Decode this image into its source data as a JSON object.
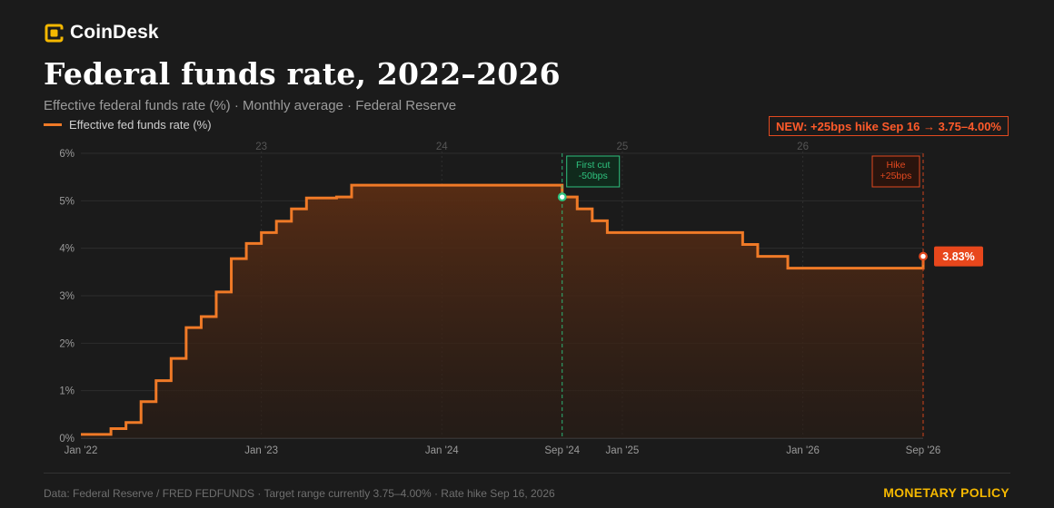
{
  "brand": {
    "name": "CoinDesk",
    "accent": "#f5b800"
  },
  "title": "Federal funds rate, 2022–2026",
  "subtitle": "Effective federal funds rate (%) · Monthly average · Federal Reserve",
  "legend": {
    "label": "Effective fed funds rate (%)",
    "color": "#f07a27"
  },
  "callout": "NEW: +25bps hike Sep 16 → 3.75–4.00%",
  "footer": {
    "source": "Data: Federal Reserve / FRED FEDFUNDS · Target range currently 3.75–4.00% · Rate hike Sep 16, 2026",
    "tag": "MONETARY POLICY"
  },
  "chart_data": {
    "type": "line",
    "step": true,
    "area_fill": true,
    "x_unit": "months",
    "x_start": "2022-01",
    "x_end": "2026-09",
    "xlim": [
      "2022-01",
      "2026-09"
    ],
    "ylim": [
      0,
      6
    ],
    "grid": true,
    "y_ticks": [
      {
        "value": 0,
        "label": "0%"
      },
      {
        "value": 1,
        "label": "1%"
      },
      {
        "value": 2,
        "label": "2%"
      },
      {
        "value": 3,
        "label": "3%"
      },
      {
        "value": 4,
        "label": "4%"
      },
      {
        "value": 5,
        "label": "5%"
      },
      {
        "value": 6,
        "label": "6%"
      }
    ],
    "x_ticks": [
      {
        "date": "2022-01",
        "label": "Jan '22"
      },
      {
        "date": "2023-01",
        "label": "Jan '23"
      },
      {
        "date": "2024-01",
        "label": "Jan '24"
      },
      {
        "date": "2024-09",
        "label": "Sep '24"
      },
      {
        "date": "2025-01",
        "label": "Jan '25"
      },
      {
        "date": "2026-01",
        "label": "Jan '26"
      },
      {
        "date": "2026-09",
        "label": "Sep '26"
      }
    ],
    "year_labels": [
      {
        "date": "2023-01",
        "label": "23"
      },
      {
        "date": "2024-01",
        "label": "24"
      },
      {
        "date": "2025-01",
        "label": "25"
      },
      {
        "date": "2026-01",
        "label": "26"
      }
    ],
    "series": [
      {
        "name": "Effective fed funds rate (%)",
        "color": "#f07a27",
        "points": [
          [
            "2022-01",
            0.08
          ],
          [
            "2022-02",
            0.08
          ],
          [
            "2022-03",
            0.2
          ],
          [
            "2022-04",
            0.33
          ],
          [
            "2022-05",
            0.77
          ],
          [
            "2022-06",
            1.21
          ],
          [
            "2022-07",
            1.68
          ],
          [
            "2022-08",
            2.33
          ],
          [
            "2022-09",
            2.56
          ],
          [
            "2022-10",
            3.08
          ],
          [
            "2022-11",
            3.78
          ],
          [
            "2022-12",
            4.1
          ],
          [
            "2023-01",
            4.33
          ],
          [
            "2023-02",
            4.57
          ],
          [
            "2023-03",
            4.83
          ],
          [
            "2023-04",
            5.06
          ],
          [
            "2023-05",
            5.06
          ],
          [
            "2023-06",
            5.08
          ],
          [
            "2023-07",
            5.33
          ],
          [
            "2023-08",
            5.33
          ],
          [
            "2023-09",
            5.33
          ],
          [
            "2023-10",
            5.33
          ],
          [
            "2023-11",
            5.33
          ],
          [
            "2023-12",
            5.33
          ],
          [
            "2024-01",
            5.33
          ],
          [
            "2024-02",
            5.33
          ],
          [
            "2024-03",
            5.33
          ],
          [
            "2024-04",
            5.33
          ],
          [
            "2024-05",
            5.33
          ],
          [
            "2024-06",
            5.33
          ],
          [
            "2024-07",
            5.33
          ],
          [
            "2024-08",
            5.33
          ],
          [
            "2024-09",
            5.08
          ],
          [
            "2024-10",
            4.83
          ],
          [
            "2024-11",
            4.58
          ],
          [
            "2024-12",
            4.33
          ],
          [
            "2025-01",
            4.33
          ],
          [
            "2025-02",
            4.33
          ],
          [
            "2025-03",
            4.33
          ],
          [
            "2025-04",
            4.33
          ],
          [
            "2025-05",
            4.33
          ],
          [
            "2025-06",
            4.33
          ],
          [
            "2025-07",
            4.33
          ],
          [
            "2025-08",
            4.33
          ],
          [
            "2025-09",
            4.08
          ],
          [
            "2025-10",
            3.83
          ],
          [
            "2025-11",
            3.83
          ],
          [
            "2025-12",
            3.58
          ],
          [
            "2026-01",
            3.58
          ],
          [
            "2026-02",
            3.58
          ],
          [
            "2026-03",
            3.58
          ],
          [
            "2026-04",
            3.58
          ],
          [
            "2026-05",
            3.58
          ],
          [
            "2026-06",
            3.58
          ],
          [
            "2026-07",
            3.58
          ],
          [
            "2026-08",
            3.58
          ],
          [
            "2026-09",
            3.83
          ]
        ]
      }
    ],
    "annotations": [
      {
        "date": "2024-09",
        "value": 5.08,
        "lines": [
          "First cut",
          "-50bps"
        ],
        "color": "#2ec27e",
        "dashed_line": true,
        "marker": true
      },
      {
        "date": "2026-09",
        "value": 3.83,
        "lines": [
          "Hike",
          "+25bps"
        ],
        "color": "#e2481f",
        "dashed_line": true,
        "marker": true
      }
    ],
    "last_value_label": {
      "text": "3.83%",
      "color": "#e8471c"
    }
  }
}
